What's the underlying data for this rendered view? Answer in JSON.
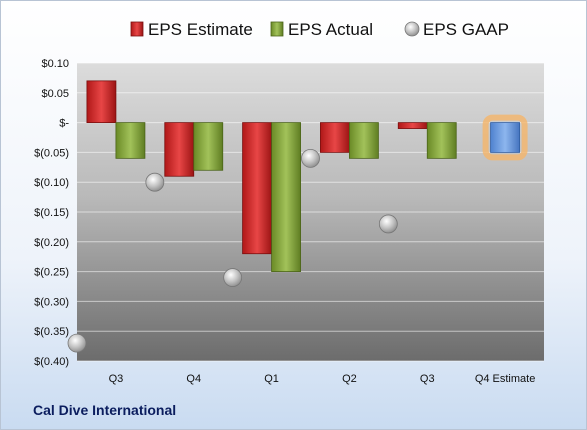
{
  "company": "Cal Dive International",
  "chart_data": {
    "type": "bar",
    "categories": [
      "Q3",
      "Q4",
      "Q1",
      "Q2",
      "Q3",
      "Q4 Estimate"
    ],
    "ylim": [
      -0.4,
      0.1
    ],
    "yticks": [
      0.1,
      0.05,
      0.0,
      -0.05,
      -0.1,
      -0.15,
      -0.2,
      -0.25,
      -0.3,
      -0.35,
      -0.4
    ],
    "ytick_labels": [
      "$0.10",
      "$0.05",
      "$-",
      "$(0.05)",
      "$(0.10)",
      "$(0.15)",
      "$(0.20)",
      "$(0.25)",
      "$(0.30)",
      "$(0.35)",
      "$(0.40)"
    ],
    "grid": true,
    "legend_position": "top",
    "series": [
      {
        "name": "EPS Estimate",
        "kind": "bar",
        "color": "#d42a2a",
        "values": [
          0.07,
          -0.09,
          -0.22,
          -0.05,
          -0.01,
          null
        ]
      },
      {
        "name": "EPS Actual",
        "kind": "bar",
        "color": "#86a83a",
        "values": [
          -0.06,
          -0.08,
          -0.25,
          -0.06,
          -0.06,
          null
        ]
      },
      {
        "name": "EPS GAAP",
        "kind": "marker",
        "color": "#b4b4b4",
        "values": [
          -0.37,
          -0.1,
          -0.26,
          -0.06,
          -0.17,
          null
        ]
      }
    ],
    "estimate": {
      "category": "Q4 Estimate",
      "value": -0.05,
      "color": "#6f9ee0",
      "glow": "#f5b56a"
    }
  }
}
